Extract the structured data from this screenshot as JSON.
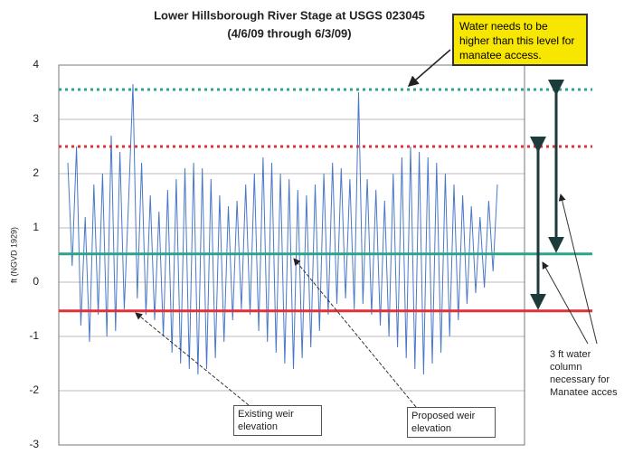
{
  "chart_data": {
    "type": "line",
    "title": "Lower Hillsborough River Stage at USGS 023045",
    "subtitle": "(4/6/09 through 6/3/09)",
    "y_label": "ft (NGVD 1929)",
    "ylim": [
      -3,
      4
    ],
    "yticks": [
      -3,
      -2,
      -1,
      0,
      1,
      2,
      3,
      4
    ],
    "grid": true,
    "series": [
      {
        "color": "#4a78c8",
        "values": [
          2.2,
          0.3,
          2.5,
          -0.8,
          1.2,
          -1.1,
          1.8,
          -0.6,
          2.0,
          -1.0,
          2.7,
          -0.9,
          2.4,
          -0.5,
          1.5,
          3.65,
          -0.3,
          2.2,
          -0.6,
          1.6,
          -0.7,
          1.3,
          -1.0,
          1.7,
          -1.3,
          1.9,
          -1.5,
          2.1,
          -1.6,
          2.2,
          -1.7,
          2.1,
          -1.6,
          1.9,
          -1.4,
          1.6,
          -1.1,
          1.4,
          -0.7,
          1.5,
          -0.5,
          1.8,
          -0.6,
          2.0,
          -0.9,
          2.3,
          -1.1,
          2.2,
          -1.3,
          2.0,
          -1.5,
          1.9,
          -1.6,
          1.7,
          -1.4,
          1.6,
          -1.2,
          1.8,
          -0.9,
          2.0,
          -0.6,
          2.2,
          -0.4,
          2.1,
          -0.3,
          1.9,
          -0.5,
          3.5,
          -0.4,
          1.9,
          -0.6,
          1.7,
          -0.8,
          1.5,
          -1.0,
          2.0,
          -1.2,
          2.3,
          -1.4,
          2.5,
          -1.6,
          2.4,
          -1.7,
          2.3,
          -1.5,
          2.2,
          -1.3,
          2.0,
          -1.0,
          1.8,
          -0.7,
          1.6,
          -0.4,
          1.4,
          -0.2,
          1.2,
          -0.1,
          1.5,
          0.2,
          1.8
        ]
      }
    ],
    "reference_lines": [
      {
        "value": 3.55,
        "color": "#2aa58a",
        "style": "dotted"
      },
      {
        "value": 2.5,
        "color": "#e0303a",
        "style": "dotted"
      },
      {
        "value": 0.52,
        "color": "#2aa58a",
        "style": "solid"
      },
      {
        "value": -0.53,
        "color": "#e0303a",
        "style": "solid"
      }
    ],
    "annotations": {
      "callout": "Water needs to be higher than this level for manatee access.",
      "existing_weir": "Existing weir elevation",
      "proposed_weir": "Proposed weir elevation",
      "water_column": "3 ft water column necessary for Manatee acces"
    }
  }
}
